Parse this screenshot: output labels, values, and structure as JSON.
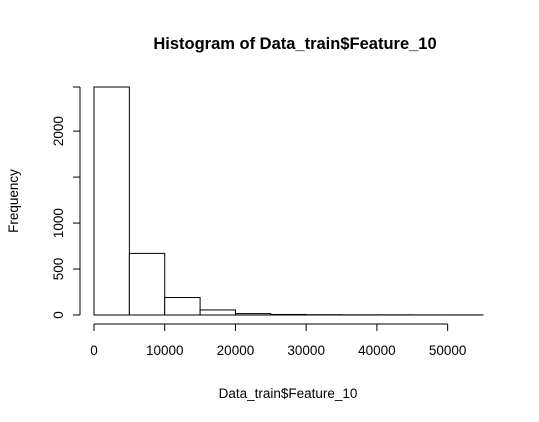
{
  "chart_data": {
    "type": "bar",
    "title": "Histogram of Data_train$Feature_10",
    "xlabel": "Data_train$Feature_10",
    "ylabel": "Frequency",
    "bin_edges": [
      0,
      5000,
      10000,
      15000,
      20000,
      25000,
      30000,
      35000,
      40000,
      45000,
      50000,
      55000
    ],
    "values": [
      2480,
      670,
      190,
      55,
      15,
      6,
      3,
      2,
      2,
      1,
      1
    ],
    "xlim": [
      0,
      55000
    ],
    "ylim": [
      0,
      2480
    ],
    "x_ticks": [
      0,
      10000,
      20000,
      30000,
      40000,
      50000
    ],
    "x_tick_labels": [
      "0",
      "10000",
      "20000",
      "30000",
      "40000",
      "50000"
    ],
    "y_ticks": [
      0,
      500,
      1000,
      1500,
      2000,
      2480
    ],
    "y_tick_labels": [
      "0",
      "500",
      "1000",
      "",
      "2000",
      ""
    ],
    "grid": false,
    "colors": {
      "bar_fill": "#ffffff",
      "bar_stroke": "#000000"
    }
  }
}
